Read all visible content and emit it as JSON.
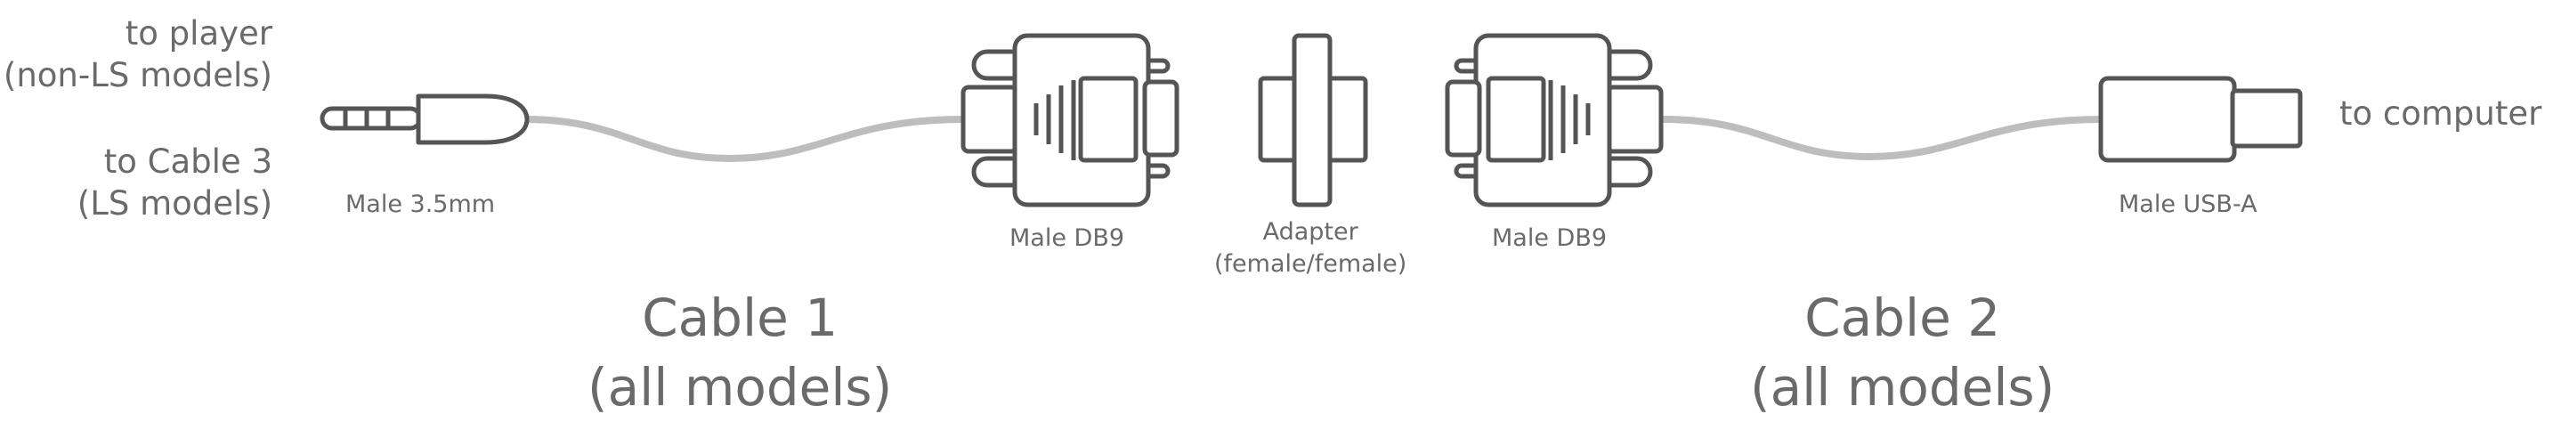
{
  "labels": {
    "to_player": [
      "to player",
      "(non-LS models)"
    ],
    "to_cable3": [
      "to Cable 3",
      "(LS models)"
    ],
    "male_35mm": "Male 3.5mm",
    "male_db9_left": "Male DB9",
    "adapter": [
      "Adapter",
      "(female/female)"
    ],
    "male_db9_right": "Male DB9",
    "male_usba": "Male USB-A",
    "to_computer": "to computer",
    "cable1": [
      "Cable 1",
      "(all models)"
    ],
    "cable2": [
      "Cable 2",
      "(all models)"
    ]
  },
  "colors": {
    "stroke": "#555555",
    "cable": "#bdbdbd",
    "text": "#6a6a6a"
  }
}
